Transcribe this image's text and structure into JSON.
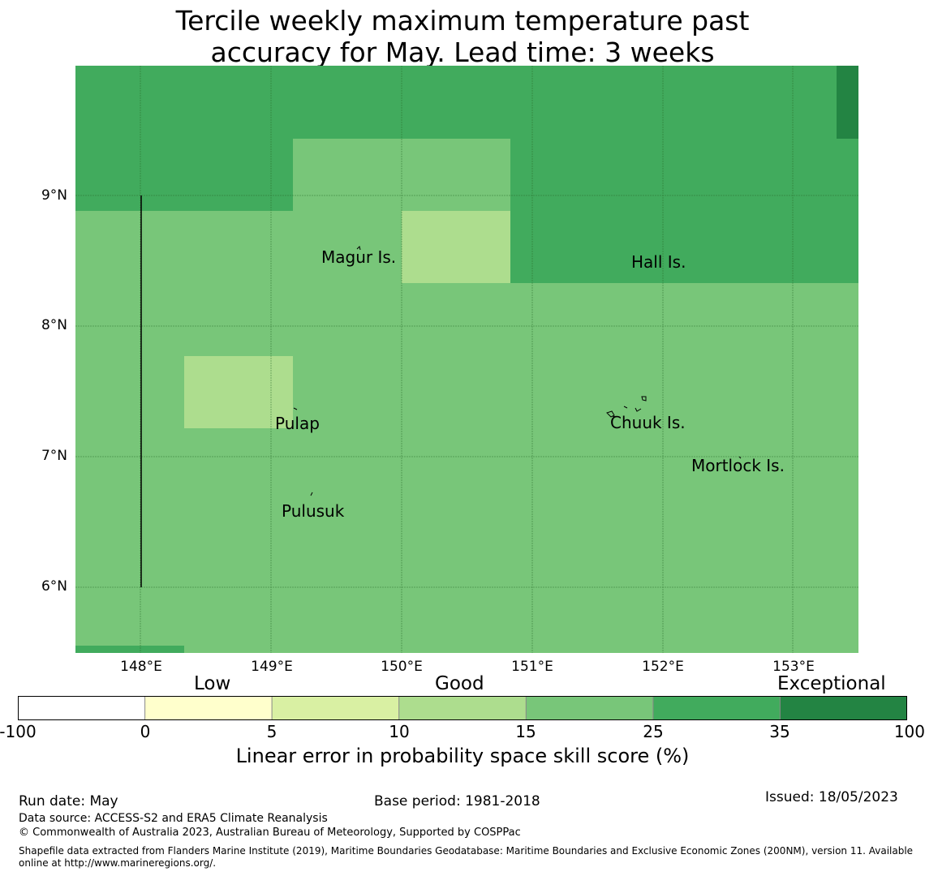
{
  "title_line1": "Tercile weekly maximum temperature past",
  "title_line2": "accuracy for May. Lead time: 3 weeks",
  "map": {
    "lon_range": [
      147.5,
      153.5
    ],
    "lat_range": [
      5.5,
      10.0
    ],
    "x_ticks": [
      "148°E",
      "149°E",
      "150°E",
      "151°E",
      "152°E",
      "153°E"
    ],
    "y_ticks": [
      "9°N",
      "8°N",
      "7°N",
      "6°N"
    ],
    "places": [
      "Magur Is.",
      "Hall Is.",
      "Pulap",
      "Chuuk Is.",
      "Mortlock Is.",
      "Pulusuk"
    ]
  },
  "colors": {
    "c_neg": "#ffffff",
    "c_0_5": "#ffffcc",
    "c_5_10": "#d9f0a3",
    "c_10_15": "#addd8e",
    "c_15_25": "#78c679",
    "c_25_35": "#41ab5d",
    "c_35_100": "#238443"
  },
  "colorbar": {
    "ticks": [
      "-100",
      "0",
      "5",
      "10",
      "15",
      "25",
      "35",
      "100"
    ],
    "categories": [
      "Low",
      "Good",
      "Exceptional"
    ],
    "label": "Linear error in probability space skill score (%)"
  },
  "footer": {
    "run_date": "Run date: May",
    "base_period": "Base period: 1981-2018",
    "issued": "Issued: 18/05/2023",
    "data_source": "Data source: ACCESS-S2 and ERA5 Climate Reanalysis",
    "copyright": "© Commonwealth of Australia 2023, Australian Bureau of Meteorology, Supported by COSPPac",
    "shapefile": "Shapefile data extracted from Flanders Marine Institute (2019), Maritime Boundaries Geodatabase: Maritime Boundaries and Exclusive Economic Zones (200NM), version 11. Available online at http://www.marineregions.org/."
  }
}
